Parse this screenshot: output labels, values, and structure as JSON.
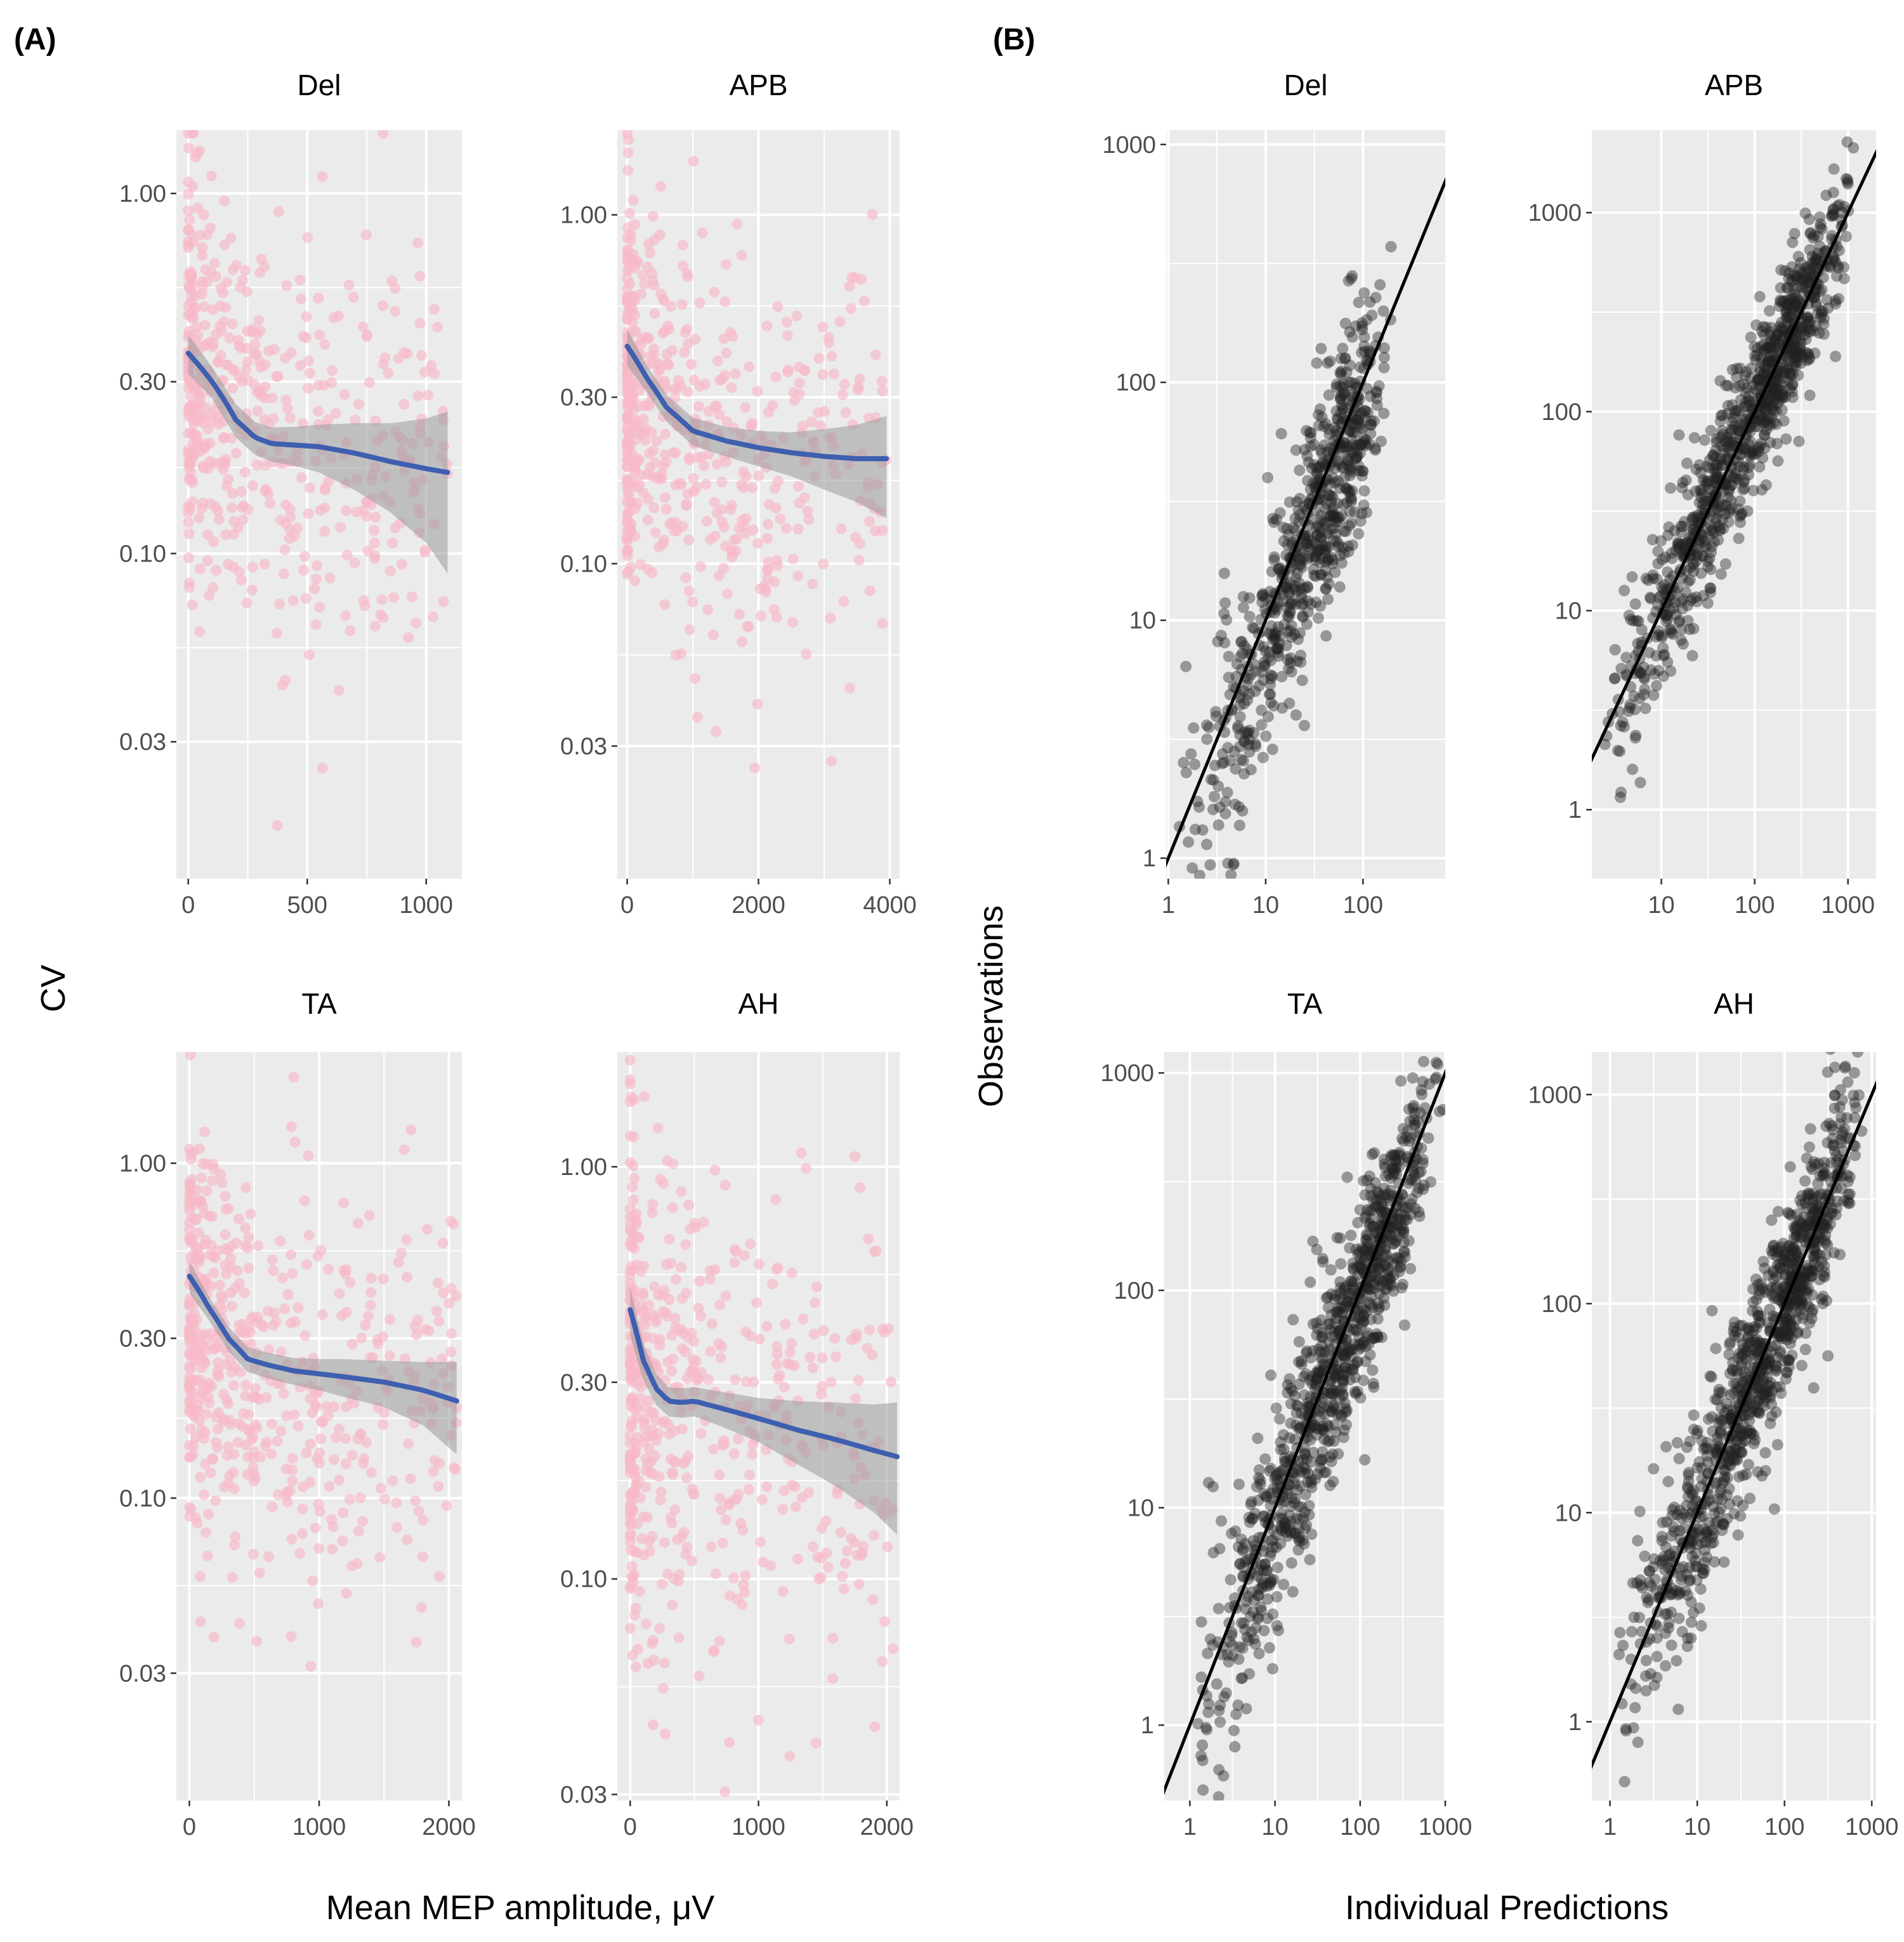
{
  "panel_labels": [
    "(A)",
    "(B)"
  ],
  "axis_titles": {
    "a_x": "Mean MEP amplitude, μV",
    "a_y": "CV",
    "b_x": "Individual Predictions",
    "b_y": "Observations"
  },
  "colors": {
    "panel_bg": "#ebebeb",
    "grid": "#ffffff",
    "cv_points": "#f7b8c8",
    "smooth_line": "#3e5fb0",
    "ribbon": "#9a9a9a",
    "obs_points": "#222222",
    "identity_line": "#000000"
  },
  "chart_data": [
    {
      "id": "A-Del",
      "panel": "(A)",
      "type": "scatter",
      "title": "Del",
      "x_scale": "linear",
      "y_scale": "log",
      "xlim": [
        -50,
        1150
      ],
      "ylim": [
        0.0125,
        1.5
      ],
      "xticks": [
        0,
        500,
        1000
      ],
      "xtick_labels": [
        "0",
        "500",
        "1000"
      ],
      "yticks": [
        0.03,
        0.1,
        0.3,
        1.0
      ],
      "ytick_labels": [
        "0.03",
        "0.10",
        "0.30",
        "1.00"
      ],
      "xlabel": "Mean MEP amplitude, μV",
      "ylabel": "CV",
      "points": {
        "n": 520,
        "x_max": 1090,
        "x_skew": 2.3,
        "y_center": 0.32,
        "y_slope": -0.45,
        "y_spread": 0.28,
        "seed": 11
      },
      "smooth": {
        "x": [
          0,
          100,
          200,
          280,
          350,
          450,
          550,
          700,
          850,
          1000,
          1090
        ],
        "y": [
          0.36,
          0.3,
          0.235,
          0.21,
          0.202,
          0.2,
          0.198,
          0.19,
          0.18,
          0.172,
          0.168
        ]
      },
      "ribbon_half": [
        0.045,
        0.03,
        0.025,
        0.022,
        0.022,
        0.025,
        0.03,
        0.04,
        0.05,
        0.065,
        0.08
      ]
    },
    {
      "id": "A-APB",
      "panel": "(A)",
      "type": "scatter",
      "title": "APB",
      "x_scale": "linear",
      "y_scale": "log",
      "xlim": [
        -150,
        4150
      ],
      "ylim": [
        0.0125,
        1.75
      ],
      "xticks": [
        0,
        2000,
        4000
      ],
      "xtick_labels": [
        "0",
        "2000",
        "4000"
      ],
      "yticks": [
        0.03,
        0.1,
        0.3,
        1.0
      ],
      "ytick_labels": [
        "0.03",
        "0.10",
        "0.30",
        "1.00"
      ],
      "xlabel": "Mean MEP amplitude, μV",
      "ylabel": "CV",
      "points": {
        "n": 560,
        "x_max": 3950,
        "x_skew": 2.5,
        "y_center": 0.3,
        "y_slope": -0.4,
        "y_spread": 0.28,
        "seed": 23
      },
      "smooth": {
        "x": [
          0,
          300,
          600,
          1000,
          1500,
          2000,
          2500,
          3000,
          3500,
          3950
        ],
        "y": [
          0.42,
          0.34,
          0.28,
          0.24,
          0.225,
          0.215,
          0.208,
          0.203,
          0.2,
          0.2
        ]
      },
      "ribbon_half": [
        0.05,
        0.03,
        0.025,
        0.022,
        0.022,
        0.025,
        0.03,
        0.04,
        0.05,
        0.065
      ]
    },
    {
      "id": "A-TA",
      "panel": "(A)",
      "type": "scatter",
      "title": "TA",
      "x_scale": "linear",
      "y_scale": "log",
      "xlim": [
        -100,
        2100
      ],
      "ylim": [
        0.0125,
        2.15
      ],
      "xticks": [
        0,
        1000,
        2000
      ],
      "xtick_labels": [
        "0",
        "1000",
        "2000"
      ],
      "yticks": [
        0.03,
        0.1,
        0.3,
        1.0
      ],
      "ytick_labels": [
        "0.03",
        "0.10",
        "0.30",
        "1.00"
      ],
      "xlabel": "Mean MEP amplitude, μV",
      "ylabel": "CV",
      "points": {
        "n": 560,
        "x_max": 2060,
        "x_skew": 2.4,
        "y_center": 0.33,
        "y_slope": -0.35,
        "y_spread": 0.3,
        "seed": 37
      },
      "smooth": {
        "x": [
          0,
          150,
          300,
          450,
          600,
          800,
          1000,
          1200,
          1500,
          1800,
          2060
        ],
        "y": [
          0.46,
          0.37,
          0.3,
          0.26,
          0.25,
          0.24,
          0.235,
          0.23,
          0.222,
          0.21,
          0.195
        ]
      },
      "ribbon_half": [
        0.05,
        0.03,
        0.025,
        0.022,
        0.022,
        0.022,
        0.025,
        0.03,
        0.035,
        0.045,
        0.06
      ]
    },
    {
      "id": "A-AH",
      "panel": "(A)",
      "type": "scatter",
      "title": "AH",
      "x_scale": "linear",
      "y_scale": "log",
      "xlim": [
        -100,
        2100
      ],
      "ylim": [
        0.029,
        1.9
      ],
      "xticks": [
        0,
        1000,
        2000
      ],
      "xtick_labels": [
        "0",
        "1000",
        "2000"
      ],
      "yticks": [
        0.03,
        0.1,
        0.3,
        1.0
      ],
      "ytick_labels": [
        "0.03",
        "0.10",
        "0.30",
        "1.00"
      ],
      "xlabel": "Mean MEP amplitude, μV",
      "ylabel": "CV",
      "points": {
        "n": 560,
        "x_max": 2080,
        "x_skew": 2.5,
        "y_center": 0.3,
        "y_slope": -0.3,
        "y_spread": 0.3,
        "seed": 53
      },
      "smooth": {
        "x": [
          0,
          100,
          200,
          300,
          400,
          500,
          700,
          1000,
          1300,
          1600,
          1900,
          2080
        ],
        "y": [
          0.45,
          0.34,
          0.29,
          0.27,
          0.268,
          0.27,
          0.26,
          0.245,
          0.23,
          0.218,
          0.205,
          0.198
        ]
      },
      "ribbon_half": [
        0.06,
        0.035,
        0.025,
        0.022,
        0.022,
        0.022,
        0.025,
        0.03,
        0.04,
        0.05,
        0.06,
        0.07
      ]
    },
    {
      "id": "B-Del",
      "panel": "(B)",
      "type": "scatter",
      "title": "Del",
      "x_scale": "log",
      "y_scale": "log",
      "xlim": [
        0.95,
        700
      ],
      "ylim": [
        0.82,
        1150
      ],
      "xticks": [
        1,
        10,
        100
      ],
      "xtick_labels": [
        "1",
        "10",
        "100"
      ],
      "yticks": [
        1,
        10,
        100,
        1000
      ],
      "ytick_labels": [
        "1",
        "10",
        "100",
        "1000"
      ],
      "xlabel": "Individual Predictions",
      "ylabel": "Observations",
      "points": {
        "n": 700,
        "x_lo": 1.2,
        "x_hi": 220,
        "x_mode": 70,
        "spread": 0.42,
        "bias": -0.1,
        "seed": 71
      },
      "identity_line": true
    },
    {
      "id": "B-APB",
      "panel": "(B)",
      "type": "scatter",
      "title": "APB",
      "x_scale": "log",
      "y_scale": "log",
      "xlim": [
        1.8,
        2000
      ],
      "ylim": [
        0.45,
        2600
      ],
      "xticks": [
        10,
        100,
        1000
      ],
      "xtick_labels": [
        "10",
        "100",
        "1000"
      ],
      "yticks": [
        1,
        10,
        100,
        1000
      ],
      "ytick_labels": [
        "1",
        "10",
        "100",
        "1000"
      ],
      "xlabel": "Individual Predictions",
      "ylabel": "Observations",
      "points": {
        "n": 950,
        "x_lo": 2,
        "x_hi": 1200,
        "x_mode": 250,
        "spread": 0.33,
        "bias": 0.0,
        "seed": 89
      },
      "identity_line": true
    },
    {
      "id": "B-TA",
      "panel": "(B)",
      "type": "scatter",
      "title": "TA",
      "x_scale": "log",
      "y_scale": "log",
      "xlim": [
        0.5,
        1000
      ],
      "ylim": [
        0.45,
        1250
      ],
      "xticks": [
        1,
        10,
        100,
        1000
      ],
      "xtick_labels": [
        "1",
        "10",
        "100",
        "1000"
      ],
      "yticks": [
        1,
        10,
        100,
        1000
      ],
      "ytick_labels": [
        "1",
        "10",
        "100",
        "1000"
      ],
      "xlabel": "Individual Predictions",
      "ylabel": "Observations",
      "points": {
        "n": 950,
        "x_lo": 0.8,
        "x_hi": 950,
        "x_mode": 150,
        "spread": 0.4,
        "bias": -0.05,
        "seed": 97
      },
      "identity_line": true
    },
    {
      "id": "B-AH",
      "panel": "(B)",
      "type": "scatter",
      "title": "AH",
      "x_scale": "log",
      "y_scale": "log",
      "xlim": [
        0.62,
        1120
      ],
      "ylim": [
        0.42,
        1600
      ],
      "xticks": [
        1,
        10,
        100,
        1000
      ],
      "xtick_labels": [
        "1",
        "10",
        "100",
        "1000"
      ],
      "yticks": [
        1,
        10,
        100,
        1000
      ],
      "ytick_labels": [
        "1",
        "10",
        "100",
        "1000"
      ],
      "xlabel": "Individual Predictions",
      "ylabel": "Observations",
      "points": {
        "n": 1000,
        "x_lo": 0.9,
        "x_hi": 800,
        "x_mode": 120,
        "spread": 0.38,
        "bias": 0.0,
        "seed": 113
      },
      "identity_line": true
    }
  ]
}
